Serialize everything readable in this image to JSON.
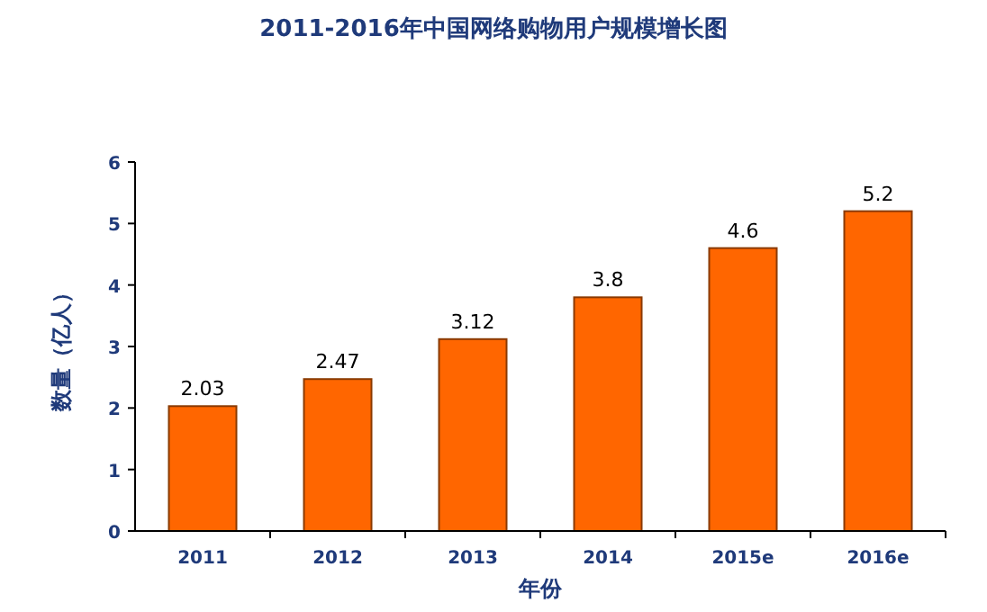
{
  "chart_data": {
    "type": "bar",
    "title": "2011-2016年中国网络购物用户规模增长图",
    "xlabel": "年份",
    "ylabel": "数量（亿人）",
    "categories": [
      "2011",
      "2012",
      "2013",
      "2014",
      "2015e",
      "2016e"
    ],
    "values": [
      2.03,
      2.47,
      3.12,
      3.8,
      4.6,
      5.2
    ],
    "color": "#ff6600",
    "ylim": [
      0,
      6
    ],
    "yticks": [
      0,
      1,
      2,
      3,
      4,
      5,
      6
    ],
    "data_labels": true
  }
}
